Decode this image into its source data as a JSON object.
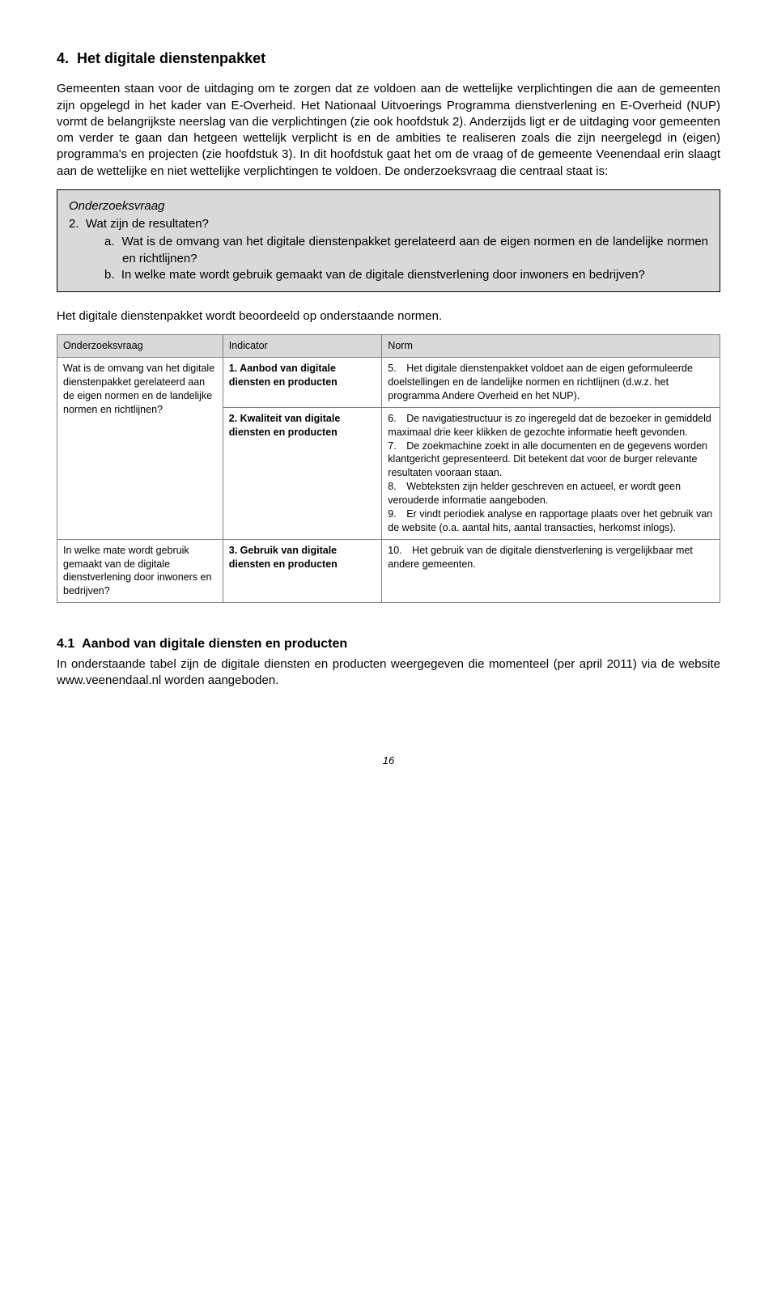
{
  "heading": {
    "number": "4.",
    "title": "Het digitale dienstenpakket"
  },
  "para1": "Gemeenten staan voor de uitdaging om te zorgen dat ze voldoen aan de wettelijke verplichtingen die aan de gemeenten zijn opgelegd in het kader van E-Overheid. Het Nationaal Uitvoerings Programma dienstverlening en E-Overheid (NUP) vormt de belangrijkste neerslag van die verplichtingen (zie ook hoofdstuk 2). Anderzijds ligt er de uitdaging voor gemeenten om verder te gaan dan hetgeen wettelijk verplicht is en de ambities te realiseren zoals die zijn neergelegd in (eigen) programma's en projecten (zie hoofdstuk 3). In dit hoofdstuk gaat het om de vraag of de gemeente Veenendaal erin slaagt aan de wettelijke en niet wettelijke verplichtingen te voldoen. De onderzoeksvraag die centraal staat is:",
  "qbox": {
    "title": "Onderzoeksvraag",
    "main_num": "2.",
    "main_text": "Wat zijn de resultaten?",
    "a_num": "a.",
    "a_text": "Wat is de omvang van het digitale dienstenpakket gerelateerd aan de eigen normen en de landelijke normen en richtlijnen?",
    "b_num": "b.",
    "b_text": "In welke mate wordt gebruik gemaakt van de digitale dienstverlening door inwoners en bedrijven?"
  },
  "para2": "Het digitale dienstenpakket wordt beoordeeld op onderstaande normen.",
  "table": {
    "headers": [
      "Onderzoeksvraag",
      "Indicator",
      "Norm"
    ],
    "rows": [
      {
        "c1": "Wat is de omvang van het digitale dienstenpakket gerelateerd aan de eigen normen en de landelijke normen en richtlijnen?",
        "c2_bold": "1. Aanbod van digitale diensten en producten",
        "c3": "5. Het digitale dienstenpakket voldoet aan de eigen geformuleerde doelstellingen en de landelijke normen en richtlijnen (d.w.z. het programma Andere Overheid en het NUP)."
      },
      {
        "c1": "",
        "c2_bold": "2. Kwaliteit van digitale diensten en producten",
        "c3": "6. De navigatiestructuur is zo ingeregeld dat de bezoeker in gemiddeld maximaal drie keer klikken de gezochte informatie heeft gevonden.\n7. De zoekmachine zoekt in alle documenten en de gegevens worden klantgericht gepresenteerd. Dit betekent dat voor de burger relevante resultaten vooraan staan.\n8. Webteksten zijn helder geschreven en actueel, er wordt geen verouderde informatie aangeboden.\n9. Er vindt periodiek analyse en rapportage plaats over het gebruik van de website (o.a. aantal hits, aantal transacties, herkomst inlogs)."
      },
      {
        "c1": "In welke mate wordt gebruik gemaakt van de digitale dienstverlening door inwoners en bedrijven?",
        "c2_bold": "3. Gebruik van digitale diensten en producten",
        "c3": "10. Het gebruik van de digitale dienstverlening is vergelijkbaar met andere gemeenten."
      }
    ]
  },
  "subheading": {
    "number": "4.1",
    "title": "Aanbod van digitale diensten en producten"
  },
  "para3": "In onderstaande tabel zijn de digitale diensten en producten weergegeven die momenteel (per april 2011) via de website www.veenendaal.nl worden aangeboden.",
  "page_number": "16"
}
